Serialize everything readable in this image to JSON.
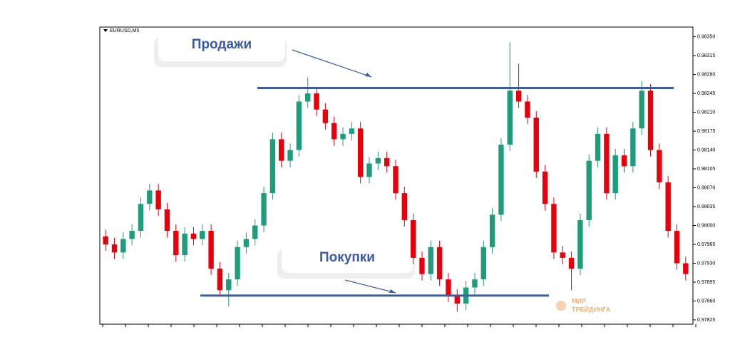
{
  "chart_data": {
    "type": "candlestick",
    "symbol": "EURUSD,M5",
    "ylim": [
      0.97817,
      0.98368
    ],
    "yticks": [
      {
        "value": 0.9835,
        "label": "0.98350"
      },
      {
        "value": 0.98315,
        "label": "0.98315"
      },
      {
        "value": 0.9828,
        "label": "0.98280"
      },
      {
        "value": 0.98245,
        "label": "0.98245"
      },
      {
        "value": 0.9821,
        "label": "0.98210"
      },
      {
        "value": 0.98175,
        "label": "0.98175"
      },
      {
        "value": 0.9814,
        "label": "0.98140"
      },
      {
        "value": 0.98105,
        "label": "0.98105"
      },
      {
        "value": 0.9807,
        "label": "0.98070"
      },
      {
        "value": 0.98035,
        "label": "0.98035"
      },
      {
        "value": 0.98,
        "label": "0.98000"
      },
      {
        "value": 0.97965,
        "label": "0.97965"
      },
      {
        "value": 0.9793,
        "label": "0.97930"
      },
      {
        "value": 0.97895,
        "label": "0.97895"
      },
      {
        "value": 0.9786,
        "label": "0.97860"
      },
      {
        "value": 0.97825,
        "label": "0.97825"
      }
    ],
    "up_color": "#1f9c7c",
    "down_color": "#e8000b",
    "open": [
      0.9798,
      0.97965,
      0.9795,
      0.97975,
      0.9799,
      0.9804,
      0.98065,
      0.9803,
      0.9799,
      0.97945,
      0.97985,
      0.97975,
      0.9799,
      0.9792,
      0.9788,
      0.979,
      0.9796,
      0.97975,
      0.98,
      0.9806,
      0.9816,
      0.9812,
      0.9814,
      0.9823,
      0.98245,
      0.98215,
      0.9819,
      0.9816,
      0.9817,
      0.9818,
      0.9809,
      0.98115,
      0.98125,
      0.9811,
      0.9806,
      0.9801,
      0.9794,
      0.9791,
      0.9796,
      0.979,
      0.9787,
      0.97855,
      0.97885,
      0.979,
      0.9796,
      0.9802,
      0.9815,
      0.9825,
      0.9823,
      0.982,
      0.981,
      0.9804,
      0.9795,
      0.9794,
      0.9792,
      0.9801,
      0.9812,
      0.9817,
      0.9806,
      0.9813,
      0.9811,
      0.9818,
      0.9825,
      0.9814,
      0.9808,
      0.9799,
      0.9793
    ],
    "high": [
      0.97992,
      0.97977,
      0.97987,
      0.98002,
      0.98052,
      0.98077,
      0.98077,
      0.98042,
      0.98002,
      0.97997,
      0.97997,
      0.98002,
      0.98002,
      0.97932,
      0.97912,
      0.97972,
      0.97987,
      0.98012,
      0.98072,
      0.98172,
      0.98172,
      0.98152,
      0.98242,
      0.98275,
      0.98257,
      0.98227,
      0.98202,
      0.98182,
      0.98192,
      0.98192,
      0.98127,
      0.98137,
      0.98137,
      0.98122,
      0.98072,
      0.98022,
      0.97952,
      0.97972,
      0.97972,
      0.97912,
      0.97882,
      0.97897,
      0.97912,
      0.97972,
      0.98032,
      0.98162,
      0.9834,
      0.983,
      0.98242,
      0.98212,
      0.98112,
      0.98052,
      0.97962,
      0.97952,
      0.98022,
      0.98132,
      0.98182,
      0.98182,
      0.98142,
      0.98142,
      0.98192,
      0.98268,
      0.98262,
      0.98152,
      0.98092,
      0.98002,
      0.97942
    ],
    "low": [
      0.97953,
      0.97938,
      0.97938,
      0.97963,
      0.97978,
      0.98028,
      0.98018,
      0.97978,
      0.97933,
      0.97933,
      0.97963,
      0.97963,
      0.97908,
      0.97868,
      0.9785,
      0.97888,
      0.97948,
      0.97963,
      0.97988,
      0.98048,
      0.98108,
      0.98108,
      0.98128,
      0.98218,
      0.98203,
      0.98178,
      0.98148,
      0.98148,
      0.98158,
      0.98078,
      0.98078,
      0.98103,
      0.98098,
      0.98048,
      0.97998,
      0.97928,
      0.97898,
      0.97898,
      0.97888,
      0.97858,
      0.9784,
      0.97843,
      0.97873,
      0.97888,
      0.97948,
      0.98008,
      0.98138,
      0.98218,
      0.98188,
      0.98088,
      0.98028,
      0.97938,
      0.97928,
      0.9788,
      0.97908,
      0.97998,
      0.98108,
      0.98048,
      0.98048,
      0.98098,
      0.98098,
      0.98168,
      0.98128,
      0.98068,
      0.97978,
      0.97918,
      0.97898
    ],
    "close": [
      0.97965,
      0.9795,
      0.97975,
      0.9799,
      0.9804,
      0.98065,
      0.9803,
      0.9799,
      0.97945,
      0.97985,
      0.97975,
      0.9799,
      0.9792,
      0.9788,
      0.979,
      0.9796,
      0.97975,
      0.98,
      0.9806,
      0.9816,
      0.9812,
      0.9814,
      0.9823,
      0.98245,
      0.98215,
      0.9819,
      0.9816,
      0.9817,
      0.9818,
      0.9809,
      0.98115,
      0.98125,
      0.9811,
      0.9806,
      0.9801,
      0.9794,
      0.9791,
      0.9796,
      0.979,
      0.9787,
      0.97855,
      0.97885,
      0.979,
      0.9796,
      0.9802,
      0.9815,
      0.9825,
      0.9823,
      0.982,
      0.981,
      0.9804,
      0.9795,
      0.9794,
      0.9792,
      0.9801,
      0.9812,
      0.9817,
      0.9806,
      0.9813,
      0.9811,
      0.9818,
      0.9825,
      0.9814,
      0.9808,
      0.9799,
      0.9793,
      0.9791
    ],
    "resistance": 0.98255,
    "support": 0.9787,
    "level_color": "#3b5ba5",
    "annotations": [
      "Продажи",
      "Покупки"
    ],
    "watermark": [
      "МИР",
      "ТРЕЙДИНГА"
    ]
  }
}
